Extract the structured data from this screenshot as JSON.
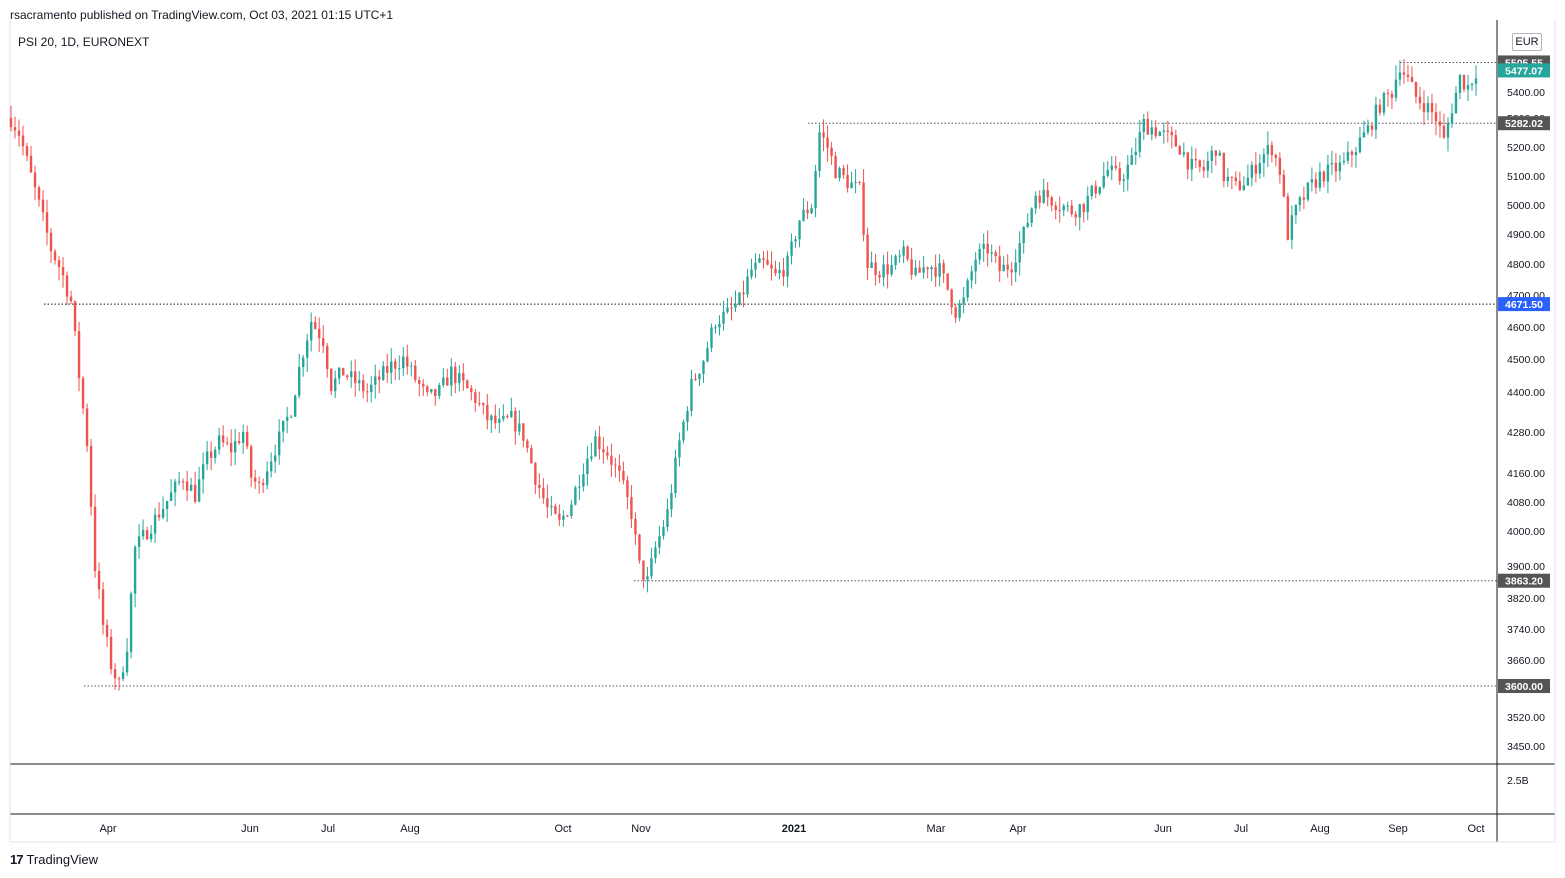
{
  "header": {
    "published_text": "rsacramento published on TradingView.com, Oct 03, 2021 01:15 UTC+1"
  },
  "symbol": {
    "label": "PSI 20, 1D, EURONEXT"
  },
  "currency": "EUR",
  "footer": {
    "brand": "TradingView"
  },
  "colors": {
    "up": "#26a69a",
    "down": "#ef5350",
    "axis": "#131722",
    "grid_label": "#131722",
    "last_price_bg": "#26a69a",
    "level_bg": "#555555",
    "highlight_level_bg": "#2962ff"
  },
  "chart_data": {
    "type": "candlestick",
    "x_axis_labels": [
      "Apr",
      "Jun",
      "Jul",
      "Aug",
      "Oct",
      "Nov",
      "2021",
      "Mar",
      "Apr",
      "Jun",
      "Jul",
      "Aug",
      "Sep",
      "Oct"
    ],
    "y_ticks": [
      3450,
      3520,
      3600,
      3660,
      3740,
      3820,
      3900,
      4000,
      4080,
      4160,
      4280,
      4400,
      4500,
      4600,
      4700,
      4800,
      4900,
      5000,
      5100,
      5200,
      5300,
      5400,
      5500
    ],
    "y_tick_labels": [
      "3450.00",
      "3520.00",
      "3600.00",
      "3660.00",
      "3740.00",
      "3820.00",
      "3900.00",
      "4000.00",
      "4080.00",
      "4160.00",
      "4280.00",
      "4400.00",
      "4500.00",
      "4600.00",
      "4700.00",
      "4800.00",
      "4900.00",
      "5000.00",
      "5100.00",
      "5200.00",
      "5300.00",
      "5400.00",
      "5500.00"
    ],
    "horizontal_levels": [
      {
        "value": 5505.55,
        "label": "5505.55",
        "style": "gray"
      },
      {
        "value": 5282.02,
        "label": "5282.02",
        "style": "gray"
      },
      {
        "value": 4671.5,
        "label": "4671.50",
        "style": "blue"
      },
      {
        "value": 3863.2,
        "label": "3863.20",
        "style": "gray"
      },
      {
        "value": 3600.0,
        "label": "3600.00",
        "style": "gray"
      }
    ],
    "last_price": {
      "value": 5477.07,
      "label": "5477.07"
    },
    "volume_axis_label": "2.5B",
    "price_path": [
      [
        0,
        5300
      ],
      [
        4,
        5250
      ],
      [
        8,
        5150
      ],
      [
        12,
        5050
      ],
      [
        16,
        4950
      ],
      [
        20,
        4850
      ],
      [
        25,
        4780
      ],
      [
        30,
        4680
      ],
      [
        34,
        4450
      ],
      [
        38,
        4250
      ],
      [
        42,
        3900
      ],
      [
        46,
        3750
      ],
      [
        50,
        3650
      ],
      [
        54,
        3600
      ],
      [
        58,
        3700
      ],
      [
        62,
        3950
      ],
      [
        68,
        4000
      ],
      [
        74,
        4050
      ],
      [
        80,
        4100
      ],
      [
        86,
        4150
      ],
      [
        92,
        4100
      ],
      [
        98,
        4200
      ],
      [
        104,
        4250
      ],
      [
        110,
        4230
      ],
      [
        116,
        4280
      ],
      [
        120,
        4150
      ],
      [
        124,
        4120
      ],
      [
        128,
        4180
      ],
      [
        134,
        4260
      ],
      [
        140,
        4350
      ],
      [
        145,
        4500
      ],
      [
        150,
        4620
      ],
      [
        156,
        4560
      ],
      [
        160,
        4420
      ],
      [
        166,
        4460
      ],
      [
        172,
        4430
      ],
      [
        178,
        4400
      ],
      [
        184,
        4440
      ],
      [
        190,
        4480
      ],
      [
        196,
        4500
      ],
      [
        202,
        4440
      ],
      [
        208,
        4380
      ],
      [
        214,
        4400
      ],
      [
        220,
        4460
      ],
      [
        226,
        4420
      ],
      [
        232,
        4380
      ],
      [
        238,
        4320
      ],
      [
        244,
        4300
      ],
      [
        250,
        4320
      ],
      [
        256,
        4270
      ],
      [
        262,
        4150
      ],
      [
        268,
        4060
      ],
      [
        274,
        4020
      ],
      [
        280,
        4080
      ],
      [
        286,
        4180
      ],
      [
        292,
        4260
      ],
      [
        298,
        4220
      ],
      [
        304,
        4150
      ],
      [
        310,
        4050
      ],
      [
        314,
        3900
      ],
      [
        318,
        3860
      ],
      [
        322,
        3950
      ],
      [
        328,
        4050
      ],
      [
        334,
        4250
      ],
      [
        340,
        4420
      ],
      [
        346,
        4500
      ],
      [
        352,
        4620
      ],
      [
        358,
        4640
      ],
      [
        364,
        4680
      ],
      [
        370,
        4780
      ],
      [
        376,
        4800
      ],
      [
        382,
        4760
      ],
      [
        388,
        4800
      ],
      [
        394,
        4950
      ],
      [
        400,
        5000
      ],
      [
        404,
        5250
      ],
      [
        408,
        5200
      ],
      [
        412,
        5120
      ],
      [
        418,
        5080
      ],
      [
        424,
        5050
      ],
      [
        428,
        4800
      ],
      [
        434,
        4780
      ],
      [
        440,
        4790
      ],
      [
        446,
        4830
      ],
      [
        452,
        4760
      ],
      [
        458,
        4800
      ],
      [
        464,
        4780
      ],
      [
        468,
        4720
      ],
      [
        472,
        4650
      ],
      [
        476,
        4680
      ],
      [
        482,
        4820
      ],
      [
        488,
        4850
      ],
      [
        494,
        4780
      ],
      [
        500,
        4800
      ],
      [
        506,
        4900
      ],
      [
        512,
        5040
      ],
      [
        518,
        5030
      ],
      [
        524,
        5000
      ],
      [
        530,
        4980
      ],
      [
        536,
        5000
      ],
      [
        542,
        5060
      ],
      [
        548,
        5120
      ],
      [
        554,
        5090
      ],
      [
        560,
        5150
      ],
      [
        566,
        5280
      ],
      [
        572,
        5260
      ],
      [
        578,
        5230
      ],
      [
        584,
        5200
      ],
      [
        590,
        5130
      ],
      [
        596,
        5120
      ],
      [
        602,
        5200
      ],
      [
        606,
        5100
      ],
      [
        612,
        5060
      ],
      [
        618,
        5090
      ],
      [
        624,
        5160
      ],
      [
        630,
        5200
      ],
      [
        634,
        5120
      ],
      [
        638,
        4900
      ],
      [
        642,
        4980
      ],
      [
        648,
        5050
      ],
      [
        654,
        5100
      ],
      [
        660,
        5120
      ],
      [
        666,
        5140
      ],
      [
        672,
        5200
      ],
      [
        678,
        5260
      ],
      [
        684,
        5350
      ],
      [
        690,
        5400
      ],
      [
        694,
        5500
      ],
      [
        698,
        5440
      ],
      [
        702,
        5380
      ],
      [
        708,
        5340
      ],
      [
        712,
        5300
      ],
      [
        716,
        5220
      ],
      [
        720,
        5340
      ],
      [
        724,
        5450
      ],
      [
        728,
        5420
      ],
      [
        732,
        5477
      ]
    ]
  }
}
